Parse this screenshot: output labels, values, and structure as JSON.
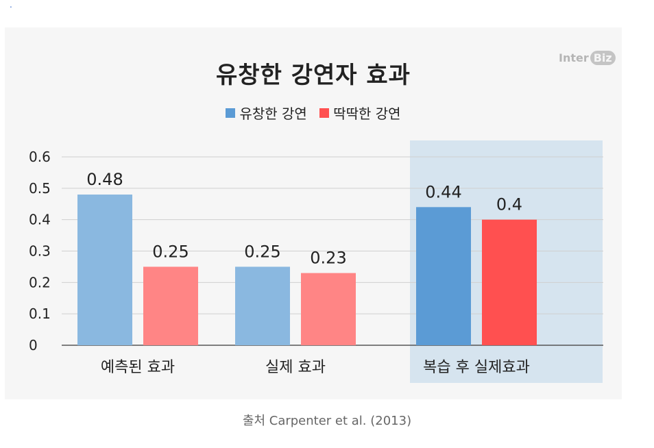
{
  "page": {
    "corner_mark": "."
  },
  "logo": {
    "part1": "Inter",
    "part2": "Biz"
  },
  "source": "출처 Carpenter et al. (2013)",
  "chart_data": {
    "type": "bar",
    "title": "유창한 강연자 효과",
    "categories": [
      "예측된 효과",
      "실제 효과",
      "복습 후 실제효과"
    ],
    "series": [
      {
        "name": "유창한 강연",
        "values": [
          0.48,
          0.25,
          0.44
        ],
        "color": "#5b9bd5",
        "light_color": "#8ab8e0"
      },
      {
        "name": "딱딱한 강연",
        "values": [
          0.25,
          0.23,
          0.4
        ],
        "color": "#ff5050",
        "light_color": "#ff8585"
      }
    ],
    "data_labels": [
      [
        "0.48",
        "0.25",
        "0.44"
      ],
      [
        "0.25",
        "0.23",
        "0.4"
      ]
    ],
    "yticks": [
      "0",
      "0.1",
      "0.2",
      "0.3",
      "0.4",
      "0.5",
      "0.6"
    ],
    "ylim": [
      0,
      0.6
    ],
    "grid": true,
    "legend_position": "top-center",
    "highlighted_category": "복습 후 실제효과",
    "highlight_color": "#d6e4ef"
  }
}
